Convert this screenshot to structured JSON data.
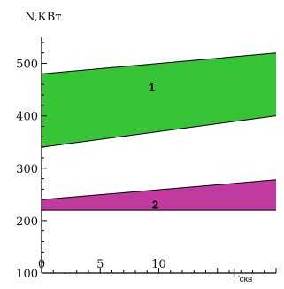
{
  "chart_data": {
    "type": "area",
    "title": "",
    "ylabel": "N,КВт",
    "xlabel_main": "L",
    "xlabel_sub": "скв",
    "xlim": [
      0,
      20
    ],
    "ylim": [
      100,
      550
    ],
    "x_ticks": [
      0,
      5,
      10
    ],
    "y_ticks": [
      100,
      200,
      300,
      400,
      500
    ],
    "x_tick_labels": [
      "0",
      "5",
      "10"
    ],
    "y_tick_labels": [
      "100",
      "200",
      "300",
      "400",
      "500"
    ],
    "grid": false,
    "bands": [
      {
        "label": "1",
        "color": "#36c436",
        "label_pos": [
          9.4,
          455
        ],
        "upper": {
          "x": [
            0,
            20
          ],
          "y": [
            480,
            520
          ]
        },
        "lower": {
          "x": [
            0,
            20
          ],
          "y": [
            340,
            400
          ]
        }
      },
      {
        "label": "2",
        "color": "#c13a9f",
        "label_pos": [
          9.7,
          231
        ],
        "upper": {
          "x": [
            0,
            20
          ],
          "y": [
            240,
            278
          ]
        },
        "lower": {
          "x": [
            0,
            20
          ],
          "y": [
            220,
            220
          ]
        }
      }
    ]
  }
}
